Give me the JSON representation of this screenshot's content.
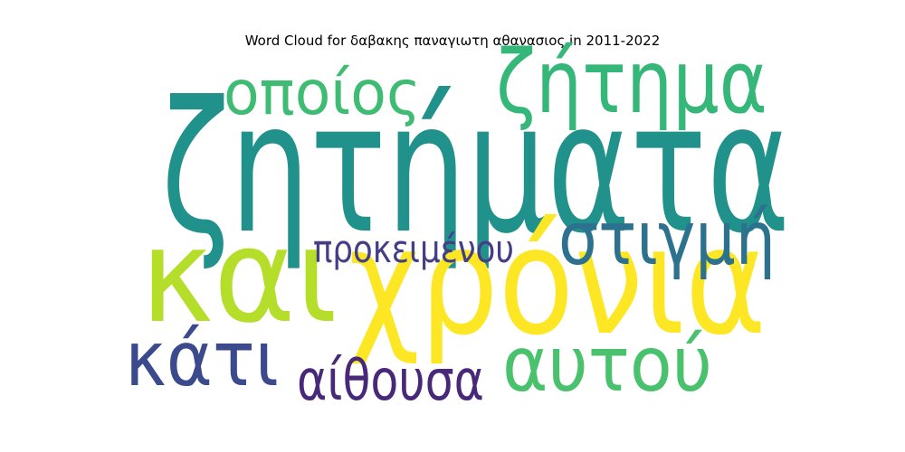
{
  "chart_data": {
    "type": "wordcloud",
    "title": "Word Cloud for δαβακης παναγιωτη αθανασιος in 2011-2022",
    "words": [
      {
        "text": "ζητήματα",
        "weight": 1.0,
        "color": "#21918c"
      },
      {
        "text": "χρόνια",
        "weight": 0.82,
        "color": "#fde725"
      },
      {
        "text": "και",
        "weight": 0.72,
        "color": "#b5de2b"
      },
      {
        "text": "ζήτημα",
        "weight": 0.48,
        "color": "#35b779"
      },
      {
        "text": "αυτού",
        "weight": 0.42,
        "color": "#4ac16d"
      },
      {
        "text": "κάτι",
        "weight": 0.42,
        "color": "#3b4a8c"
      },
      {
        "text": "στιγμή",
        "weight": 0.41,
        "color": "#2c718e"
      },
      {
        "text": "οποίος",
        "weight": 0.34,
        "color": "#3fbc73"
      },
      {
        "text": "αίθουσα",
        "weight": 0.31,
        "color": "#482878"
      },
      {
        "text": "προκειμένου",
        "weight": 0.21,
        "color": "#433e85"
      }
    ]
  }
}
